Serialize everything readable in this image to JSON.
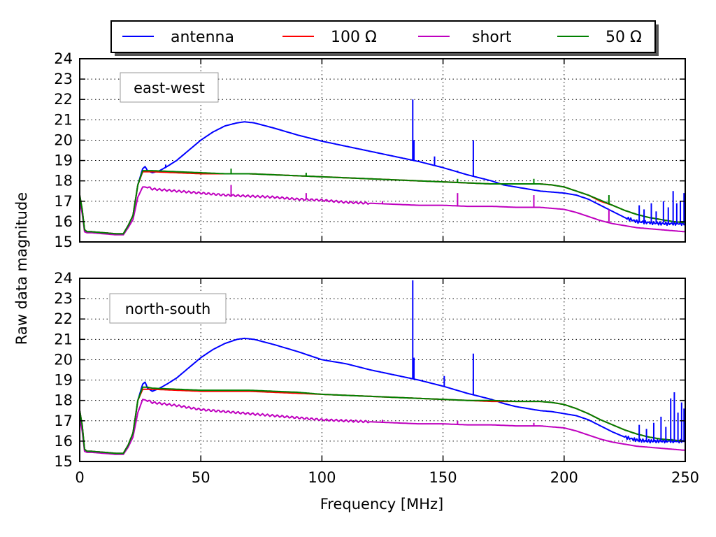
{
  "chart_data": {
    "type": "line",
    "xlabel": "Frequency [MHz]",
    "ylabel": "Raw data magnitude",
    "xlim": [
      0,
      250
    ],
    "ylim": [
      15,
      24
    ],
    "xticks": [
      0,
      50,
      100,
      150,
      200,
      250
    ],
    "yticks": [
      15,
      16,
      17,
      18,
      19,
      20,
      21,
      22,
      23,
      24
    ],
    "grid": true,
    "legend": {
      "position": "top-center",
      "entries": [
        {
          "name": "antenna",
          "color": "#0000ff"
        },
        {
          "name": "100 Ω",
          "color": "#ff0000"
        },
        {
          "name": "short",
          "color": "#bf00bf"
        },
        {
          "name": "50 Ω",
          "color": "#008000"
        }
      ]
    },
    "panels": [
      {
        "label": "east-west",
        "series": [
          {
            "name": "antenna",
            "color": "#0000ff",
            "x": [
              0,
              1,
              2,
              3,
              5,
              10,
              15,
              18,
              20,
              22,
              24,
              26,
              27,
              28,
              30,
              33,
              36,
              40,
              45,
              50,
              55,
              60,
              65,
              68,
              72,
              80,
              90,
              100,
              110,
              120,
              130,
              140,
              150,
              160,
              170,
              175,
              180,
              185,
              190,
              195,
              200,
              205,
              210,
              215,
              220,
              225,
              230,
              235,
              240,
              245,
              250
            ],
            "y": [
              17.3,
              16.6,
              15.6,
              15.5,
              15.5,
              15.45,
              15.4,
              15.4,
              15.8,
              16.3,
              17.8,
              18.6,
              18.7,
              18.5,
              18.4,
              18.5,
              18.7,
              19.0,
              19.5,
              20.0,
              20.4,
              20.7,
              20.85,
              20.9,
              20.85,
              20.6,
              20.25,
              19.95,
              19.7,
              19.45,
              19.2,
              18.95,
              18.65,
              18.3,
              18.0,
              17.8,
              17.7,
              17.6,
              17.5,
              17.45,
              17.4,
              17.3,
              17.1,
              16.8,
              16.5,
              16.2,
              16.0,
              15.95,
              15.9,
              15.9,
              15.9
            ]
          },
          {
            "name": "100 Ω",
            "color": "#ff0000",
            "x": [
              0,
              1,
              2,
              3,
              5,
              10,
              15,
              18,
              20,
              22,
              24,
              26,
              28,
              30,
              40,
              50,
              60,
              70,
              80,
              90,
              100,
              110,
              120,
              130,
              140,
              150,
              160,
              170,
              180,
              190,
              195,
              200,
              205,
              210,
              215,
              220,
              225,
              230,
              235,
              240,
              245,
              250
            ],
            "y": [
              17.3,
              16.6,
              15.6,
              15.5,
              15.5,
              15.45,
              15.4,
              15.4,
              15.8,
              16.3,
              17.8,
              18.45,
              18.45,
              18.45,
              18.4,
              18.35,
              18.35,
              18.35,
              18.3,
              18.25,
              18.2,
              18.15,
              18.1,
              18.05,
              18.0,
              17.95,
              17.9,
              17.85,
              17.85,
              17.85,
              17.8,
              17.7,
              17.5,
              17.3,
              17.0,
              16.8,
              16.55,
              16.35,
              16.2,
              16.1,
              16.0,
              15.95
            ]
          },
          {
            "name": "short",
            "color": "#bf00bf",
            "x": [
              0,
              1,
              2,
              3,
              5,
              10,
              15,
              18,
              20,
              22,
              24,
              26,
              28,
              30,
              40,
              50,
              60,
              70,
              80,
              90,
              100,
              110,
              120,
              130,
              140,
              150,
              160,
              170,
              180,
              190,
              195,
              200,
              205,
              210,
              215,
              220,
              225,
              230,
              235,
              240,
              245,
              250
            ],
            "y": [
              17.0,
              16.4,
              15.5,
              15.45,
              15.45,
              15.4,
              15.35,
              15.35,
              15.7,
              16.1,
              17.2,
              17.7,
              17.7,
              17.6,
              17.5,
              17.4,
              17.3,
              17.25,
              17.2,
              17.1,
              17.05,
              16.95,
              16.9,
              16.85,
              16.8,
              16.8,
              16.75,
              16.75,
              16.7,
              16.7,
              16.65,
              16.6,
              16.45,
              16.25,
              16.05,
              15.9,
              15.8,
              15.7,
              15.65,
              15.6,
              15.55,
              15.5
            ]
          },
          {
            "name": "50 Ω",
            "color": "#008000",
            "x": [
              0,
              1,
              2,
              3,
              5,
              10,
              15,
              18,
              20,
              22,
              24,
              26,
              28,
              30,
              40,
              50,
              60,
              70,
              80,
              90,
              100,
              110,
              120,
              130,
              140,
              150,
              160,
              170,
              180,
              190,
              195,
              200,
              205,
              210,
              215,
              220,
              225,
              230,
              235,
              240,
              245,
              250
            ],
            "y": [
              17.3,
              16.6,
              15.6,
              15.5,
              15.5,
              15.45,
              15.4,
              15.4,
              15.8,
              16.3,
              17.8,
              18.5,
              18.5,
              18.5,
              18.45,
              18.4,
              18.35,
              18.35,
              18.3,
              18.25,
              18.2,
              18.15,
              18.1,
              18.05,
              18.0,
              17.95,
              17.9,
              17.85,
              17.85,
              17.85,
              17.8,
              17.7,
              17.5,
              17.3,
              17.05,
              16.8,
              16.55,
              16.35,
              16.2,
              16.1,
              16.0,
              15.95
            ]
          }
        ],
        "spikes": [
          {
            "series": "antenna",
            "x": 35.5,
            "y": 18.8
          },
          {
            "series": "antenna",
            "x": 137.5,
            "y": 22.0
          },
          {
            "series": "antenna",
            "x": 138.0,
            "y": 20.0
          },
          {
            "series": "antenna",
            "x": 146.5,
            "y": 19.2
          },
          {
            "series": "antenna",
            "x": 156.0,
            "y": 18.5
          },
          {
            "series": "antenna",
            "x": 162.5,
            "y": 20.0
          },
          {
            "series": "short",
            "x": 62.5,
            "y": 17.8
          },
          {
            "series": "short",
            "x": 93.5,
            "y": 17.4
          },
          {
            "series": "short",
            "x": 125.0,
            "y": 17.0
          },
          {
            "series": "short",
            "x": 156.0,
            "y": 17.4
          },
          {
            "series": "short",
            "x": 187.5,
            "y": 17.3
          },
          {
            "series": "short",
            "x": 218.5,
            "y": 16.6
          },
          {
            "series": "50 Ω",
            "x": 62.5,
            "y": 18.6
          },
          {
            "series": "50 Ω",
            "x": 93.5,
            "y": 18.4
          },
          {
            "series": "50 Ω",
            "x": 156.0,
            "y": 18.1
          },
          {
            "series": "50 Ω",
            "x": 187.5,
            "y": 18.1
          },
          {
            "series": "50 Ω",
            "x": 218.5,
            "y": 17.3
          }
        ]
      },
      {
        "label": "north-south",
        "series": [
          {
            "name": "antenna",
            "color": "#0000ff",
            "x": [
              0,
              1,
              2,
              3,
              5,
              10,
              15,
              18,
              20,
              22,
              24,
              26,
              27,
              28,
              30,
              33,
              36,
              40,
              45,
              50,
              55,
              60,
              65,
              68,
              72,
              80,
              90,
              100,
              110,
              120,
              130,
              140,
              150,
              160,
              170,
              175,
              180,
              185,
              190,
              195,
              200,
              205,
              210,
              215,
              220,
              225,
              230,
              235,
              240,
              245,
              250
            ],
            "y": [
              17.5,
              16.8,
              15.6,
              15.5,
              15.5,
              15.45,
              15.4,
              15.4,
              15.8,
              16.4,
              18.0,
              18.8,
              18.9,
              18.6,
              18.45,
              18.6,
              18.8,
              19.1,
              19.6,
              20.1,
              20.5,
              20.8,
              21.0,
              21.05,
              21.0,
              20.75,
              20.4,
              20.0,
              19.8,
              19.5,
              19.25,
              19.0,
              18.7,
              18.35,
              18.05,
              17.85,
              17.7,
              17.6,
              17.5,
              17.45,
              17.35,
              17.25,
              17.05,
              16.75,
              16.45,
              16.2,
              16.05,
              16.0,
              16.0,
              16.0,
              16.0
            ]
          },
          {
            "name": "100 Ω",
            "color": "#ff0000",
            "x": [
              0,
              1,
              2,
              3,
              5,
              10,
              15,
              18,
              20,
              22,
              24,
              26,
              28,
              30,
              40,
              50,
              60,
              70,
              80,
              90,
              100,
              110,
              120,
              130,
              140,
              150,
              160,
              170,
              180,
              190,
              195,
              200,
              205,
              210,
              215,
              220,
              225,
              230,
              235,
              240,
              245,
              250
            ],
            "y": [
              17.5,
              16.8,
              15.6,
              15.5,
              15.5,
              15.45,
              15.4,
              15.4,
              15.8,
              16.4,
              18.0,
              18.55,
              18.55,
              18.55,
              18.5,
              18.45,
              18.45,
              18.45,
              18.4,
              18.35,
              18.3,
              18.25,
              18.2,
              18.15,
              18.1,
              18.05,
              18.0,
              17.95,
              17.95,
              17.95,
              17.9,
              17.8,
              17.6,
              17.35,
              17.05,
              16.8,
              16.55,
              16.35,
              16.2,
              16.1,
              16.05,
              16.0
            ]
          },
          {
            "name": "short",
            "color": "#bf00bf",
            "x": [
              0,
              1,
              2,
              3,
              5,
              10,
              15,
              18,
              20,
              22,
              24,
              26,
              28,
              30,
              40,
              50,
              60,
              70,
              80,
              90,
              100,
              110,
              120,
              130,
              140,
              150,
              160,
              170,
              180,
              190,
              195,
              200,
              205,
              210,
              215,
              220,
              225,
              230,
              235,
              240,
              245,
              250
            ],
            "y": [
              17.2,
              16.5,
              15.5,
              15.45,
              15.45,
              15.4,
              15.35,
              15.35,
              15.7,
              16.2,
              17.4,
              18.05,
              18.0,
              17.9,
              17.75,
              17.55,
              17.45,
              17.35,
              17.25,
              17.15,
              17.05,
              17.0,
              16.95,
              16.9,
              16.85,
              16.85,
              16.8,
              16.8,
              16.75,
              16.75,
              16.7,
              16.65,
              16.5,
              16.3,
              16.1,
              15.95,
              15.85,
              15.75,
              15.7,
              15.65,
              15.6,
              15.55
            ]
          },
          {
            "name": "50 Ω",
            "color": "#008000",
            "x": [
              0,
              1,
              2,
              3,
              5,
              10,
              15,
              18,
              20,
              22,
              24,
              26,
              28,
              30,
              40,
              50,
              60,
              70,
              80,
              90,
              100,
              110,
              120,
              130,
              140,
              150,
              160,
              170,
              180,
              190,
              195,
              200,
              205,
              210,
              215,
              220,
              225,
              230,
              235,
              240,
              245,
              250
            ],
            "y": [
              17.5,
              16.8,
              15.6,
              15.5,
              15.5,
              15.45,
              15.4,
              15.4,
              15.8,
              16.4,
              18.0,
              18.65,
              18.65,
              18.6,
              18.55,
              18.5,
              18.5,
              18.5,
              18.45,
              18.4,
              18.3,
              18.25,
              18.2,
              18.15,
              18.1,
              18.05,
              18.0,
              18.0,
              17.95,
              17.95,
              17.9,
              17.8,
              17.6,
              17.35,
              17.05,
              16.8,
              16.55,
              16.35,
              16.2,
              16.1,
              16.05,
              16.0
            ]
          }
        ],
        "spikes": [
          {
            "series": "antenna",
            "x": 137.5,
            "y": 23.9
          },
          {
            "series": "antenna",
            "x": 138.0,
            "y": 20.1
          },
          {
            "series": "antenna",
            "x": 150.5,
            "y": 19.2
          },
          {
            "series": "antenna",
            "x": 162.5,
            "y": 20.3
          },
          {
            "series": "short",
            "x": 125.0,
            "y": 17.05
          },
          {
            "series": "short",
            "x": 156.0,
            "y": 17.0
          },
          {
            "series": "short",
            "x": 187.5,
            "y": 16.9
          }
        ]
      }
    ]
  }
}
